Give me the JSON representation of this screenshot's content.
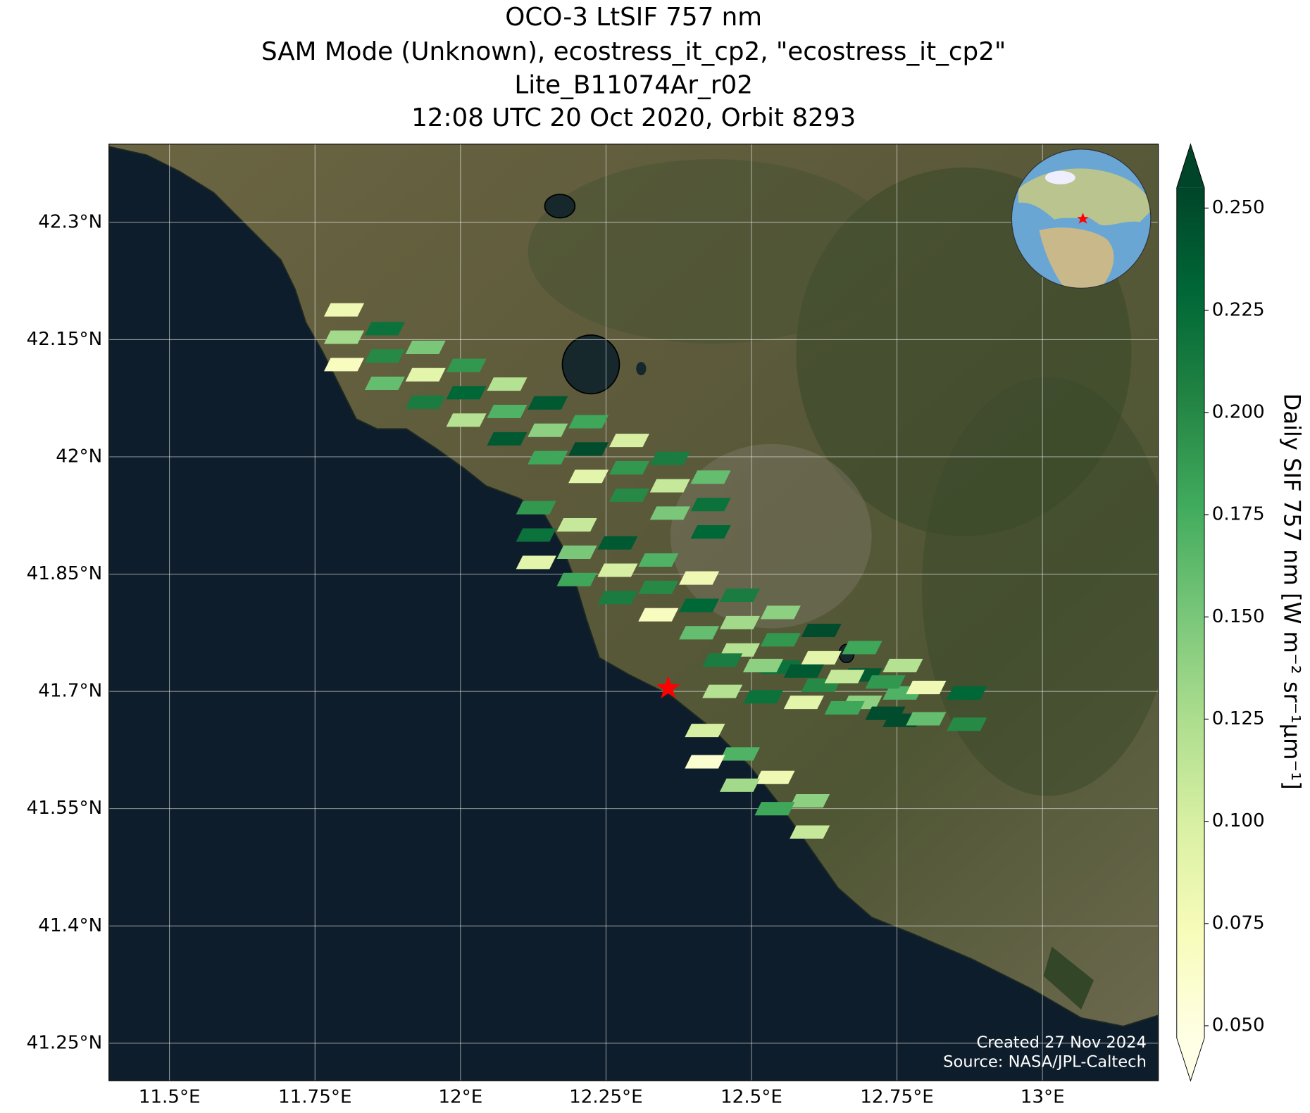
{
  "chart_data": {
    "type": "map",
    "title": [
      "OCO-3 LtSIF 757 nm",
      "SAM Mode (Unknown), ecostress_it_cp2, \"ecostress_it_cp2\"",
      "Lite_B11074Ar_r02",
      "12:08 UTC 20 Oct 2020, Orbit 8293"
    ],
    "colorbar_label": "Daily SIF 757 nm [W m⁻² sr⁻¹µm⁻¹]",
    "annotations": [
      "Created 27 Nov 2024",
      "Source: NASA/JPL-Caltech"
    ],
    "xlim": [
      11.396,
      13.199
    ],
    "ylim": [
      41.202,
      42.4
    ],
    "xticks": [
      {
        "value": 11.5,
        "label": "11.5°E"
      },
      {
        "value": 11.75,
        "label": "11.75°E"
      },
      {
        "value": 12,
        "label": "12°E"
      },
      {
        "value": 12.25,
        "label": "12.25°E"
      },
      {
        "value": 12.5,
        "label": "12.5°E"
      },
      {
        "value": 12.75,
        "label": "12.75°E"
      },
      {
        "value": 13,
        "label": "13°E"
      }
    ],
    "yticks": [
      {
        "value": 41.25,
        "label": "41.25°N"
      },
      {
        "value": 41.4,
        "label": "41.4°N"
      },
      {
        "value": 41.55,
        "label": "41.55°N"
      },
      {
        "value": 41.7,
        "label": "41.7°N"
      },
      {
        "value": 41.85,
        "label": "41.85°N"
      },
      {
        "value": 42,
        "label": "42°N"
      },
      {
        "value": 42.15,
        "label": "42.15°N"
      },
      {
        "value": 42.3,
        "label": "42.3°N"
      }
    ],
    "grid": true,
    "clim": [
      0.047,
      0.255
    ],
    "cticks": [
      {
        "value": 0.05,
        "label": "0.050"
      },
      {
        "value": 0.075,
        "label": "0.075"
      },
      {
        "value": 0.1,
        "label": "0.100"
      },
      {
        "value": 0.125,
        "label": "0.125"
      },
      {
        "value": 0.15,
        "label": "0.150"
      },
      {
        "value": 0.175,
        "label": "0.175"
      },
      {
        "value": 0.2,
        "label": "0.200"
      },
      {
        "value": 0.225,
        "label": "0.225"
      },
      {
        "value": 0.25,
        "label": "0.250"
      }
    ],
    "colormap": [
      "#ffffe5",
      "#f7fcb9",
      "#d9f0a3",
      "#addd8e",
      "#78c679",
      "#41ab5d",
      "#238443",
      "#006837",
      "#004529"
    ],
    "marker": {
      "x": 12.357,
      "y": 41.704,
      "color": "#ff0000"
    },
    "x": [
      11.8,
      11.87,
      11.94,
      12.01,
      12.08,
      12.15,
      12.22,
      12.29,
      12.36,
      12.43,
      11.8,
      11.87,
      11.94,
      12.01,
      12.08,
      12.15,
      12.22,
      12.29,
      12.36,
      12.43,
      11.8,
      11.87,
      11.94,
      12.01,
      12.08,
      12.15,
      12.22,
      12.29,
      12.36,
      12.43,
      12.13,
      12.2,
      12.27,
      12.34,
      12.41,
      12.48,
      12.55,
      12.62,
      12.69,
      12.76,
      12.13,
      12.2,
      12.27,
      12.34,
      12.41,
      12.48,
      12.55,
      12.62,
      12.69,
      12.76,
      12.13,
      12.2,
      12.27,
      12.34,
      12.41,
      12.48,
      12.55,
      12.62,
      12.69,
      12.76,
      12.45,
      12.52,
      12.59,
      12.66,
      12.73,
      12.8,
      12.87,
      12.45,
      12.52,
      12.59,
      12.66,
      12.73,
      12.8,
      12.87,
      12.42,
      12.48,
      12.54,
      12.6,
      12.42,
      12.48,
      12.54,
      12.6
    ],
    "y": [
      42.188,
      42.164,
      42.14,
      42.117,
      42.093,
      42.069,
      42.045,
      42.021,
      41.998,
      41.974,
      42.153,
      42.129,
      42.105,
      42.082,
      42.058,
      42.034,
      42.01,
      41.986,
      41.963,
      41.939,
      42.118,
      42.094,
      42.07,
      42.047,
      42.023,
      41.999,
      41.975,
      41.951,
      41.928,
      41.904,
      41.935,
      41.913,
      41.89,
      41.868,
      41.845,
      41.823,
      41.801,
      41.778,
      41.756,
      41.733,
      41.9,
      41.878,
      41.855,
      41.833,
      41.81,
      41.788,
      41.766,
      41.743,
      41.721,
      41.698,
      41.865,
      41.843,
      41.82,
      41.798,
      41.775,
      41.753,
      41.731,
      41.708,
      41.686,
      41.663,
      41.74,
      41.733,
      41.726,
      41.719,
      41.712,
      41.705,
      41.698,
      41.7,
      41.693,
      41.686,
      41.679,
      41.672,
      41.665,
      41.658,
      41.65,
      41.62,
      41.59,
      41.56,
      41.61,
      41.58,
      41.55,
      41.52
    ],
    "values": [
      0.08,
      0.22,
      0.15,
      0.19,
      0.12,
      0.24,
      0.18,
      0.1,
      0.21,
      0.16,
      0.13,
      0.2,
      0.09,
      0.23,
      0.17,
      0.14,
      0.25,
      0.19,
      0.11,
      0.22,
      0.07,
      0.16,
      0.21,
      0.12,
      0.24,
      0.18,
      0.09,
      0.2,
      0.15,
      0.23,
      0.19,
      0.11,
      0.24,
      0.17,
      0.08,
      0.21,
      0.14,
      0.25,
      0.18,
      0.12,
      0.22,
      0.15,
      0.1,
      0.2,
      0.23,
      0.13,
      0.19,
      0.09,
      0.24,
      0.17,
      0.09,
      0.18,
      0.21,
      0.07,
      0.16,
      0.12,
      0.22,
      0.2,
      0.14,
      0.25,
      0.21,
      0.14,
      0.24,
      0.11,
      0.19,
      0.08,
      0.23,
      0.12,
      0.22,
      0.09,
      0.18,
      0.25,
      0.16,
      0.2,
      0.1,
      0.17,
      0.08,
      0.14,
      0.06,
      0.13,
      0.18,
      0.11
    ]
  }
}
